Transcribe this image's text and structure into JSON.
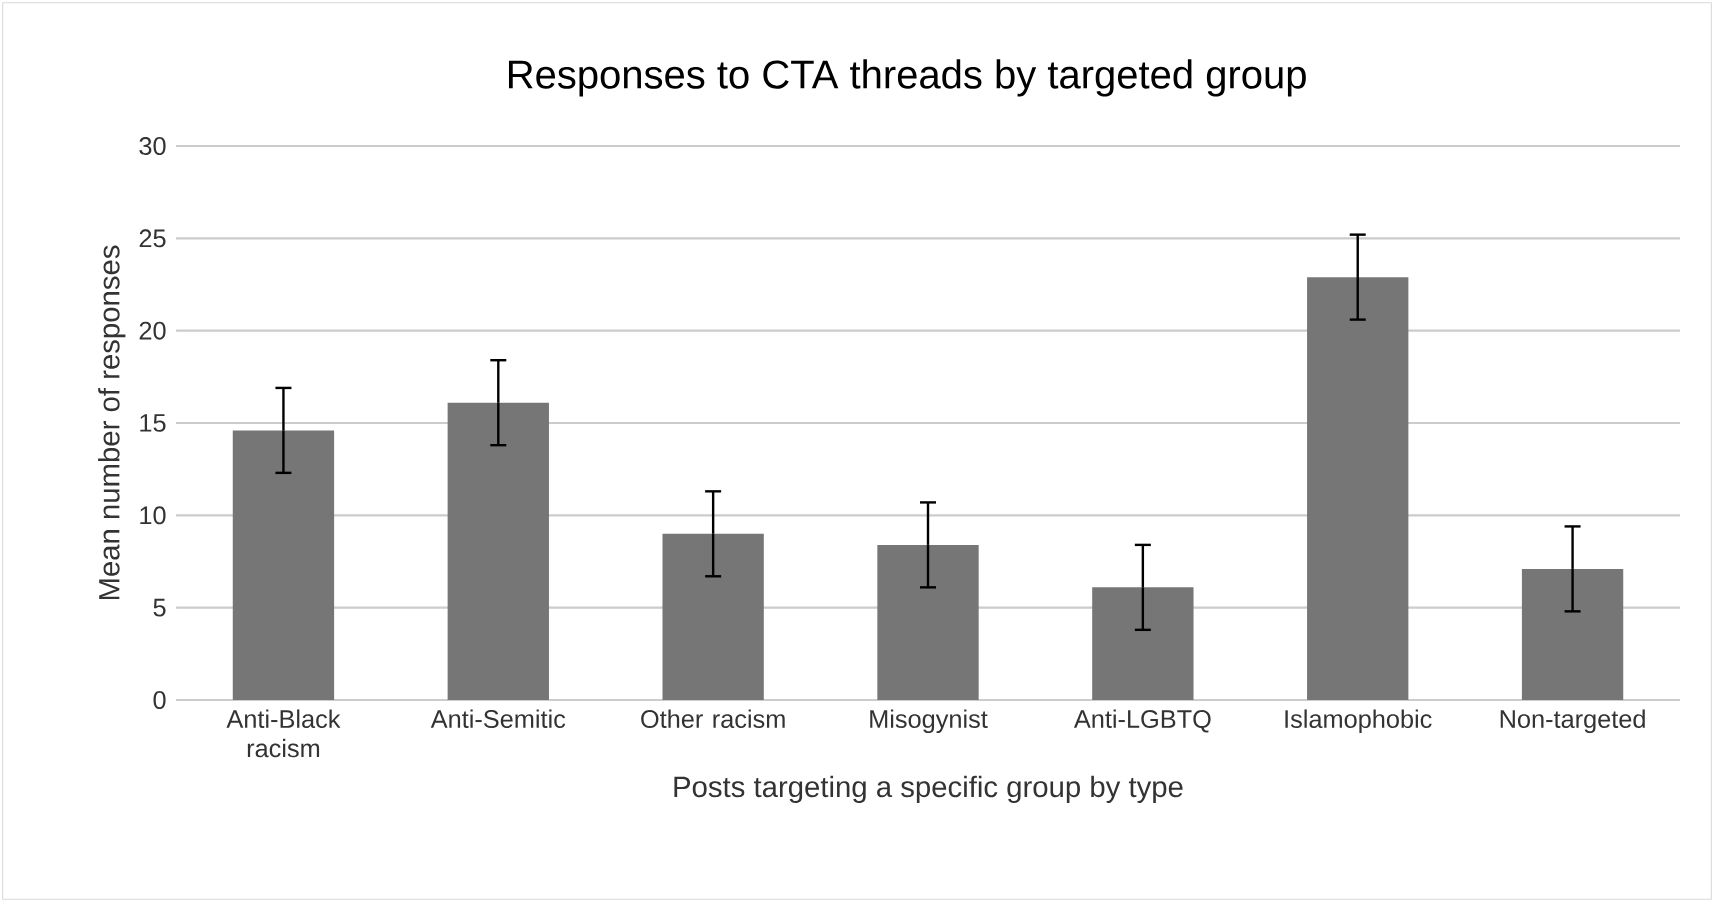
{
  "chart_data": {
    "type": "bar",
    "title": "Responses to CTA threads by targeted group",
    "xlabel": "Posts targeting a specific group by type",
    "ylabel": "Mean number of responses",
    "categories": [
      "Anti-Black racism",
      "Anti-Semitic",
      "Other racism",
      "Misogynist",
      "Anti-LGBTQ",
      "Islamophobic",
      "Non-targeted"
    ],
    "values": [
      14.6,
      16.1,
      9.0,
      8.4,
      6.1,
      22.9,
      7.1
    ],
    "errors": [
      2.3,
      2.3,
      2.3,
      2.3,
      2.3,
      2.3,
      2.3
    ],
    "color": "#767676",
    "ylim": [
      0,
      30
    ],
    "yticks": [
      0,
      5,
      10,
      15,
      20,
      25,
      30
    ],
    "grid": "y"
  }
}
